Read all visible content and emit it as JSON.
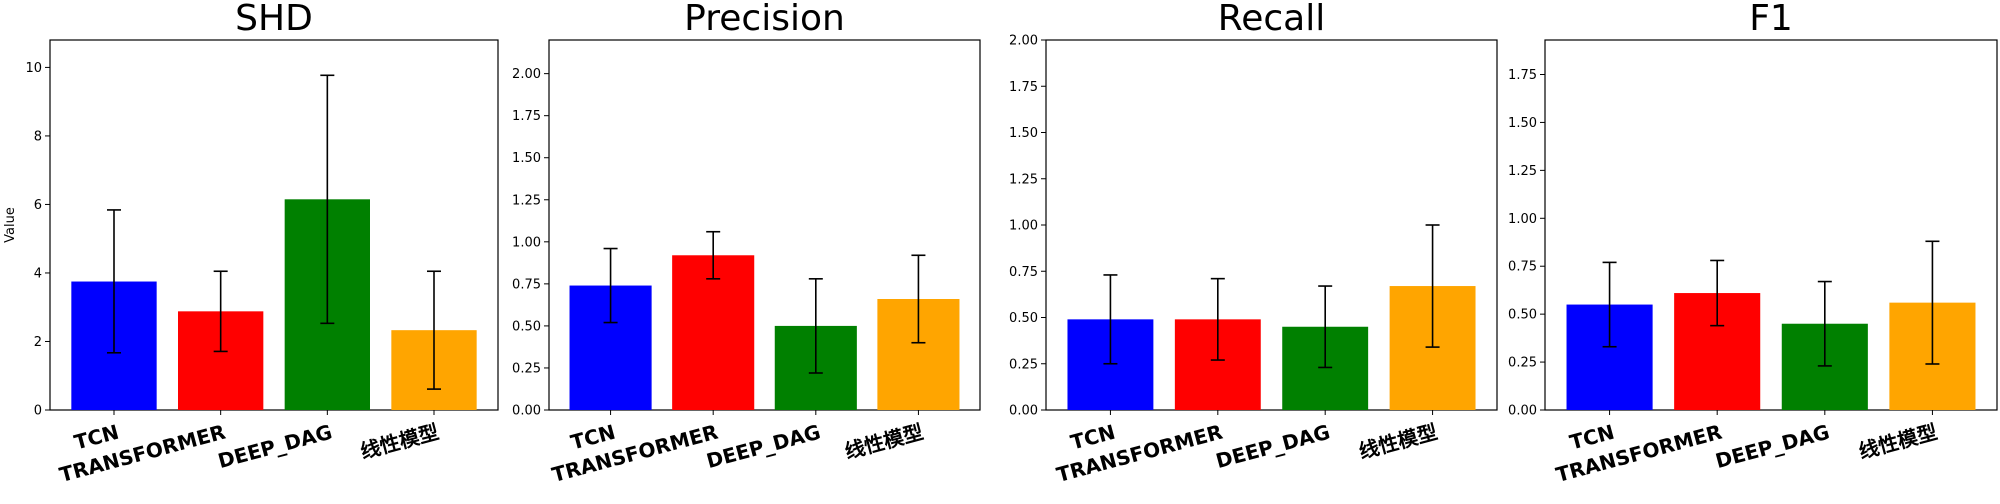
{
  "chart_data": [
    {
      "type": "bar",
      "title": "SHD",
      "ylabel": "Value",
      "categories": [
        "TCN",
        "TRANSFORMER",
        "DEEP_DAG",
        "线性模型"
      ],
      "values": [
        3.75,
        2.88,
        6.15,
        2.33
      ],
      "error_low": [
        1.67,
        1.71,
        2.53,
        0.61
      ],
      "error_high": [
        5.84,
        4.05,
        9.77,
        4.05
      ],
      "colors": [
        "#0000ff",
        "#ff0000",
        "#008000",
        "#ffa500"
      ],
      "ylim": [
        0,
        10.8
      ],
      "yticks": [
        "0",
        "2",
        "4",
        "6",
        "8",
        "10"
      ],
      "ytick_values": [
        0,
        2,
        4,
        6,
        8,
        10
      ]
    },
    {
      "type": "bar",
      "title": "Precision",
      "ylabel": "",
      "categories": [
        "TCN",
        "TRANSFORMER",
        "DEEP_DAG",
        "线性模型"
      ],
      "values": [
        0.74,
        0.92,
        0.5,
        0.66
      ],
      "error_low": [
        0.52,
        0.78,
        0.22,
        0.4
      ],
      "error_high": [
        0.96,
        1.06,
        0.78,
        0.92
      ],
      "colors": [
        "#0000ff",
        "#ff0000",
        "#008000",
        "#ffa500"
      ],
      "ylim": [
        0,
        2.2
      ],
      "yticks": [
        "0.00",
        "0.25",
        "0.50",
        "0.75",
        "1.00",
        "1.25",
        "1.50",
        "1.75",
        "2.00"
      ],
      "ytick_values": [
        0,
        0.25,
        0.5,
        0.75,
        1.0,
        1.25,
        1.5,
        1.75,
        2.0
      ]
    },
    {
      "type": "bar",
      "title": "Recall",
      "ylabel": "",
      "categories": [
        "TCN",
        "TRANSFORMER",
        "DEEP_DAG",
        "线性模型"
      ],
      "values": [
        0.49,
        0.49,
        0.45,
        0.67
      ],
      "error_low": [
        0.25,
        0.27,
        0.23,
        0.34
      ],
      "error_high": [
        0.73,
        0.71,
        0.67,
        1.0
      ],
      "colors": [
        "#0000ff",
        "#ff0000",
        "#008000",
        "#ffa500"
      ],
      "ylim": [
        0,
        2.0
      ],
      "yticks": [
        "0.00",
        "0.25",
        "0.50",
        "0.75",
        "1.00",
        "1.25",
        "1.50",
        "1.75",
        "2.00"
      ],
      "ytick_values": [
        0,
        0.25,
        0.5,
        0.75,
        1.0,
        1.25,
        1.5,
        1.75,
        2.0
      ]
    },
    {
      "type": "bar",
      "title": "F1",
      "ylabel": "",
      "categories": [
        "TCN",
        "TRANSFORMER",
        "DEEP_DAG",
        "线性模型"
      ],
      "values": [
        0.55,
        0.61,
        0.45,
        0.56
      ],
      "error_low": [
        0.33,
        0.44,
        0.23,
        0.24
      ],
      "error_high": [
        0.77,
        0.78,
        0.67,
        0.88
      ],
      "colors": [
        "#0000ff",
        "#ff0000",
        "#008000",
        "#ffa500"
      ],
      "ylim": [
        0,
        1.93
      ],
      "yticks": [
        "0.00",
        "0.25",
        "0.50",
        "0.75",
        "1.00",
        "1.25",
        "1.50",
        "1.75"
      ],
      "ytick_values": [
        0,
        0.25,
        0.5,
        0.75,
        1.0,
        1.25,
        1.5,
        1.75
      ]
    }
  ]
}
